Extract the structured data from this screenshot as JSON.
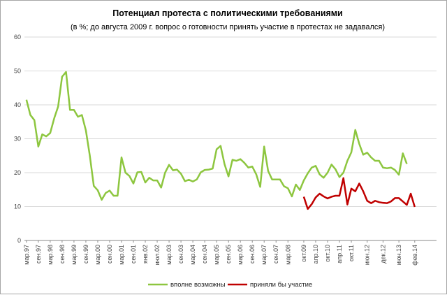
{
  "chart_data": {
    "type": "line",
    "title": "Потенциал протеста с политическими требованиями",
    "subtitle": "(в %; до августа 2009 г. вопрос о готовности принять участие в протестах не задавался)",
    "ylim": [
      0,
      60
    ],
    "yticks": [
      0,
      10,
      20,
      30,
      40,
      50,
      60
    ],
    "grid": true,
    "legend_position": "bottom",
    "x_count": 104,
    "xtick_labels": [
      {
        "i": 0,
        "label": "мар.97"
      },
      {
        "i": 3,
        "label": "сен.97"
      },
      {
        "i": 6,
        "label": "мар.98"
      },
      {
        "i": 9,
        "label": "сен.98"
      },
      {
        "i": 12,
        "label": "мар.99"
      },
      {
        "i": 15,
        "label": "сен.99"
      },
      {
        "i": 18,
        "label": "мар.00"
      },
      {
        "i": 21,
        "label": "сен.00"
      },
      {
        "i": 24,
        "label": "мар.01"
      },
      {
        "i": 27,
        "label": "сен.01"
      },
      {
        "i": 30,
        "label": "янв.02"
      },
      {
        "i": 33,
        "label": "июл.02"
      },
      {
        "i": 36,
        "label": "мар.03"
      },
      {
        "i": 39,
        "label": "сен.03"
      },
      {
        "i": 42,
        "label": "мар.04"
      },
      {
        "i": 45,
        "label": "сен.04"
      },
      {
        "i": 48,
        "label": "мар.05"
      },
      {
        "i": 51,
        "label": "сен.05"
      },
      {
        "i": 54,
        "label": "мар.06"
      },
      {
        "i": 57,
        "label": "сен.06"
      },
      {
        "i": 60,
        "label": "мар.07"
      },
      {
        "i": 63,
        "label": "сен.07"
      },
      {
        "i": 66,
        "label": "мар.08"
      },
      {
        "i": 70,
        "label": "окт.09"
      },
      {
        "i": 73,
        "label": "апр.10"
      },
      {
        "i": 76,
        "label": "окт.10"
      },
      {
        "i": 79,
        "label": "апр.11"
      },
      {
        "i": 82,
        "label": "окт.11"
      },
      {
        "i": 86,
        "label": "июн.12"
      },
      {
        "i": 90,
        "label": "дек.12"
      },
      {
        "i": 94,
        "label": "июн.13"
      },
      {
        "i": 98,
        "label": "фев.14"
      }
    ],
    "series": [
      {
        "name": "вполне возможны",
        "color": "#8dc63f",
        "values": [
          41.5,
          37,
          35.5,
          27.7,
          31.3,
          30.7,
          31.7,
          36,
          39.5,
          48.3,
          49.7,
          38.5,
          38.5,
          36.5,
          37,
          32.5,
          25,
          16.1,
          14.8,
          12,
          14,
          14.7,
          13.2,
          13.2,
          24.5,
          20,
          19,
          16.8,
          20.1,
          20.2,
          17.1,
          18.5,
          17.7,
          17.7,
          15.6,
          20,
          22.3,
          20.7,
          20.9,
          19.7,
          17.5,
          17.9,
          17.4,
          18,
          20.1,
          20.8,
          20.9,
          21.2,
          26.9,
          27.9,
          22.5,
          18.9,
          23.8,
          23.5,
          24,
          22.9,
          21.5,
          21.8,
          19.5,
          15.8,
          27.7,
          20.5,
          18,
          18,
          18,
          16,
          15.4,
          13,
          16.5,
          14.9,
          17.7,
          19.8,
          21.5,
          22,
          19.5,
          18.5,
          20,
          22.4,
          21,
          18.7,
          20,
          23.5,
          26,
          32.6,
          28.5,
          25.3,
          25.9,
          24.5,
          23.5,
          23.5,
          21.5,
          21.3,
          21.5,
          20.8,
          19.4,
          25.7,
          22.6
        ]
      },
      {
        "name": "приняли бы участие",
        "color": "#c00000",
        "start_index": 70,
        "values": [
          12.9,
          9.3,
          10.7,
          12.7,
          13.8,
          13,
          12.4,
          12.9,
          13.2,
          13.2,
          18.4,
          10.6,
          15.3,
          14.5,
          16.8,
          14.5,
          11.7,
          11,
          11.7,
          11.3,
          11.1,
          11,
          11.5,
          12.5,
          12.5,
          11.5,
          10.5,
          13.8,
          9.9
        ]
      }
    ]
  }
}
